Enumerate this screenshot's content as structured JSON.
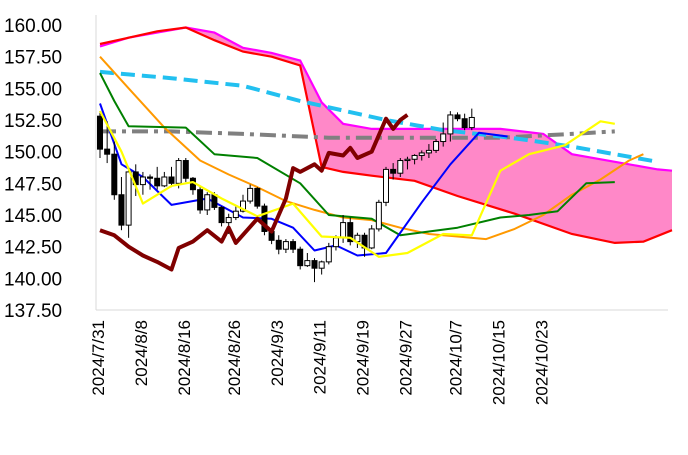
{
  "chart_data": {
    "type": "line",
    "title": "",
    "xlabel": "",
    "ylabel": "",
    "ylim": [
      137.5,
      160.0
    ],
    "y_tick_labels": [
      "160.00",
      "157.50",
      "155.00",
      "152.50",
      "150.00",
      "147.50",
      "145.00",
      "142.50",
      "140.00",
      "137.50"
    ],
    "x_tick_labels": [
      "2024/7/31",
      "2024/8/8",
      "2024/8/16",
      "2024/8/26",
      "2024/9/3",
      "2024/9/11",
      "2024/9/19",
      "2024/9/27",
      "2024/10/7",
      "2024/10/15",
      "2024/10/23"
    ],
    "grid": false,
    "legend": "none",
    "colors": {
      "candle_up": "#ffffff",
      "candle_down": "#000000",
      "cloud_bullish_fill": "#ff88c8",
      "cloud_bearish_fill": "#e030e0",
      "span_a": "#ff00ff",
      "span_b": "#ff0000",
      "tenkan": "#0000ff",
      "kijun": "#008000",
      "chikou": "#800000",
      "sma_short": "#ffff00",
      "sma_mid": "#ff9900",
      "sma_long_dashed": "#22c0f0",
      "sma_longest_dashdot": "#808080"
    },
    "candles": [
      [
        152.8,
        153.2,
        149.5,
        150.2
      ],
      [
        150.2,
        152.4,
        149.1,
        149.8
      ],
      [
        149.8,
        150.8,
        146.2,
        146.6
      ],
      [
        146.6,
        148.0,
        143.8,
        144.2
      ],
      [
        144.2,
        148.8,
        143.2,
        148.4
      ],
      [
        148.4,
        149.0,
        146.5,
        147.4
      ],
      [
        147.4,
        148.4,
        146.6,
        148.0
      ],
      [
        148.0,
        148.2,
        147.0,
        147.9
      ],
      [
        147.9,
        148.8,
        147.0,
        147.3
      ],
      [
        147.3,
        148.4,
        147.2,
        148.0
      ],
      [
        148.0,
        148.8,
        147.2,
        147.5
      ],
      [
        147.5,
        149.5,
        147.1,
        149.3
      ],
      [
        149.3,
        149.5,
        147.6,
        147.9
      ],
      [
        147.9,
        148.0,
        146.6,
        147.0
      ],
      [
        147.0,
        147.3,
        145.1,
        145.4
      ],
      [
        145.4,
        146.8,
        145.0,
        146.6
      ],
      [
        146.6,
        146.8,
        145.4,
        145.6
      ],
      [
        145.6,
        145.7,
        144.1,
        144.4
      ],
      [
        144.4,
        145.1,
        143.5,
        144.8
      ],
      [
        144.8,
        145.7,
        144.6,
        145.3
      ],
      [
        145.3,
        146.6,
        145.2,
        146.1
      ],
      [
        146.1,
        147.4,
        145.9,
        147.1
      ],
      [
        147.1,
        147.2,
        145.5,
        145.7
      ],
      [
        145.7,
        145.9,
        143.4,
        143.7
      ],
      [
        143.7,
        144.0,
        142.7,
        143.0
      ],
      [
        143.0,
        143.4,
        141.9,
        142.3
      ],
      [
        142.3,
        143.1,
        142.0,
        142.9
      ],
      [
        142.9,
        143.1,
        142.0,
        142.3
      ],
      [
        142.3,
        142.5,
        140.7,
        141.0
      ],
      [
        141.0,
        142.0,
        140.9,
        141.4
      ],
      [
        141.4,
        141.6,
        139.7,
        140.8
      ],
      [
        140.8,
        141.4,
        140.3,
        141.3
      ],
      [
        141.3,
        142.8,
        141.1,
        142.5
      ],
      [
        142.5,
        143.4,
        142.2,
        143.2
      ],
      [
        143.2,
        145.0,
        142.8,
        144.4
      ],
      [
        144.4,
        144.8,
        142.6,
        142.9
      ],
      [
        142.9,
        143.6,
        142.4,
        143.4
      ],
      [
        143.4,
        143.6,
        141.7,
        142.4
      ],
      [
        142.4,
        144.2,
        142.3,
        143.9
      ],
      [
        143.9,
        146.2,
        143.7,
        146.0
      ],
      [
        146.0,
        148.8,
        145.7,
        148.6
      ],
      [
        148.6,
        149.1,
        147.8,
        148.3
      ],
      [
        148.3,
        149.5,
        148.0,
        149.3
      ],
      [
        149.3,
        149.6,
        148.6,
        149.4
      ],
      [
        149.4,
        149.8,
        149.0,
        149.7
      ],
      [
        149.7,
        150.1,
        149.3,
        149.9
      ],
      [
        149.9,
        150.6,
        149.5,
        150.1
      ],
      [
        150.1,
        151.0,
        149.9,
        150.8
      ],
      [
        150.8,
        152.3,
        150.4,
        151.4
      ],
      [
        151.4,
        153.2,
        150.8,
        152.9
      ],
      [
        152.9,
        153.1,
        152.4,
        152.6
      ],
      [
        152.6,
        153.0,
        151.7,
        151.9
      ],
      [
        151.9,
        153.4,
        151.7,
        152.7
      ]
    ],
    "series": [
      {
        "key": "tenkan",
        "values": [
          [
            0,
            153.8
          ],
          [
            3,
            149.0
          ],
          [
            6,
            148.0
          ],
          [
            10,
            145.8
          ],
          [
            15,
            146.3
          ],
          [
            20,
            144.8
          ],
          [
            24,
            144.7
          ],
          [
            27,
            144.0
          ],
          [
            30,
            142.2
          ],
          [
            33,
            142.6
          ],
          [
            36,
            141.8
          ],
          [
            40,
            142.0
          ],
          [
            45,
            146.0
          ],
          [
            49,
            149.0
          ],
          [
            53,
            151.5
          ],
          [
            57,
            151.2
          ]
        ]
      },
      {
        "key": "kijun",
        "values": [
          [
            0,
            156.2
          ],
          [
            2,
            154.0
          ],
          [
            4,
            152.0
          ],
          [
            12,
            151.9
          ],
          [
            16,
            149.8
          ],
          [
            22,
            149.5
          ],
          [
            28,
            147.5
          ],
          [
            32,
            145.0
          ],
          [
            38,
            144.7
          ],
          [
            42,
            143.4
          ],
          [
            50,
            144.0
          ],
          [
            56,
            144.8
          ],
          [
            60,
            145.0
          ],
          [
            64,
            145.3
          ],
          [
            68,
            147.5
          ],
          [
            72,
            147.6
          ]
        ]
      },
      {
        "key": "sma_short",
        "values": [
          [
            0,
            153.2
          ],
          [
            3,
            150.0
          ],
          [
            6,
            145.9
          ],
          [
            10,
            147.3
          ],
          [
            13,
            147.6
          ],
          [
            17,
            146.3
          ],
          [
            22,
            144.9
          ],
          [
            27,
            145.9
          ],
          [
            31,
            143.3
          ],
          [
            35,
            143.2
          ],
          [
            39,
            141.7
          ],
          [
            43,
            142.0
          ],
          [
            48,
            143.5
          ],
          [
            52,
            143.4
          ],
          [
            56,
            148.5
          ],
          [
            60,
            149.8
          ],
          [
            65,
            150.5
          ],
          [
            70,
            152.4
          ],
          [
            72,
            152.2
          ]
        ]
      },
      {
        "key": "sma_mid",
        "values": [
          [
            0,
            157.5
          ],
          [
            4,
            155.0
          ],
          [
            9,
            151.9
          ],
          [
            14,
            149.3
          ],
          [
            18,
            148.2
          ],
          [
            22,
            147.2
          ],
          [
            26,
            146.1
          ],
          [
            30,
            145.4
          ],
          [
            34,
            144.8
          ],
          [
            38,
            144.6
          ],
          [
            42,
            144.0
          ],
          [
            46,
            143.5
          ],
          [
            50,
            143.3
          ],
          [
            54,
            143.1
          ],
          [
            58,
            143.9
          ],
          [
            62,
            145.0
          ],
          [
            66,
            146.6
          ],
          [
            70,
            147.8
          ],
          [
            74,
            149.3
          ],
          [
            76,
            149.8
          ]
        ]
      },
      {
        "key": "sma_long_dashed",
        "values": [
          [
            0,
            156.3
          ],
          [
            10,
            155.8
          ],
          [
            20,
            155.2
          ],
          [
            28,
            154.0
          ],
          [
            36,
            153.0
          ],
          [
            40,
            152.5
          ],
          [
            48,
            151.7
          ],
          [
            56,
            151.2
          ],
          [
            60,
            150.9
          ],
          [
            66,
            150.4
          ],
          [
            72,
            149.8
          ],
          [
            78,
            149.2
          ]
        ]
      },
      {
        "key": "sma_longest_dashdot",
        "values": [
          [
            0,
            151.6
          ],
          [
            10,
            151.6
          ],
          [
            20,
            151.4
          ],
          [
            32,
            151.1
          ],
          [
            44,
            151.1
          ],
          [
            56,
            151.1
          ],
          [
            66,
            151.4
          ],
          [
            72,
            151.6
          ]
        ]
      },
      {
        "key": "chikou",
        "values": [
          [
            0,
            143.8
          ],
          [
            2,
            143.4
          ],
          [
            4,
            142.5
          ],
          [
            6,
            141.8
          ],
          [
            8,
            141.3
          ],
          [
            10,
            140.7
          ],
          [
            11,
            142.4
          ],
          [
            13,
            142.9
          ],
          [
            15,
            143.8
          ],
          [
            17,
            142.9
          ],
          [
            18,
            144.0
          ],
          [
            19,
            142.8
          ],
          [
            22,
            144.7
          ],
          [
            24,
            143.7
          ],
          [
            26,
            146.3
          ],
          [
            27,
            148.7
          ],
          [
            28,
            148.4
          ],
          [
            30,
            149.0
          ],
          [
            31,
            148.5
          ],
          [
            32,
            149.9
          ],
          [
            34,
            149.7
          ],
          [
            35,
            150.3
          ],
          [
            36,
            149.5
          ],
          [
            38,
            150.0
          ],
          [
            40,
            152.6
          ],
          [
            41,
            151.8
          ],
          [
            42,
            152.5
          ],
          [
            43,
            152.9
          ]
        ]
      }
    ],
    "cloud": {
      "span_a": [
        [
          0,
          158.3
        ],
        [
          4,
          159.0
        ],
        [
          8,
          159.4
        ],
        [
          12,
          159.8
        ],
        [
          16,
          159.4
        ],
        [
          20,
          158.2
        ],
        [
          24,
          157.8
        ],
        [
          28,
          157.2
        ],
        [
          31,
          153.9
        ],
        [
          34,
          152.2
        ],
        [
          38,
          151.8
        ],
        [
          44,
          151.8
        ],
        [
          56,
          151.8
        ],
        [
          62,
          151.4
        ],
        [
          66,
          149.8
        ],
        [
          72,
          149.2
        ],
        [
          78,
          148.6
        ],
        [
          80,
          148.5
        ]
      ],
      "span_b": [
        [
          0,
          158.5
        ],
        [
          4,
          159.0
        ],
        [
          8,
          159.5
        ],
        [
          12,
          159.8
        ],
        [
          16,
          158.8
        ],
        [
          20,
          157.9
        ],
        [
          24,
          157.5
        ],
        [
          28,
          156.8
        ],
        [
          31,
          148.8
        ],
        [
          34,
          148.4
        ],
        [
          38,
          148.1
        ],
        [
          44,
          147.7
        ],
        [
          50,
          146.5
        ],
        [
          58,
          145.1
        ],
        [
          66,
          143.5
        ],
        [
          72,
          142.8
        ],
        [
          76,
          142.9
        ],
        [
          80,
          143.8
        ]
      ]
    }
  }
}
